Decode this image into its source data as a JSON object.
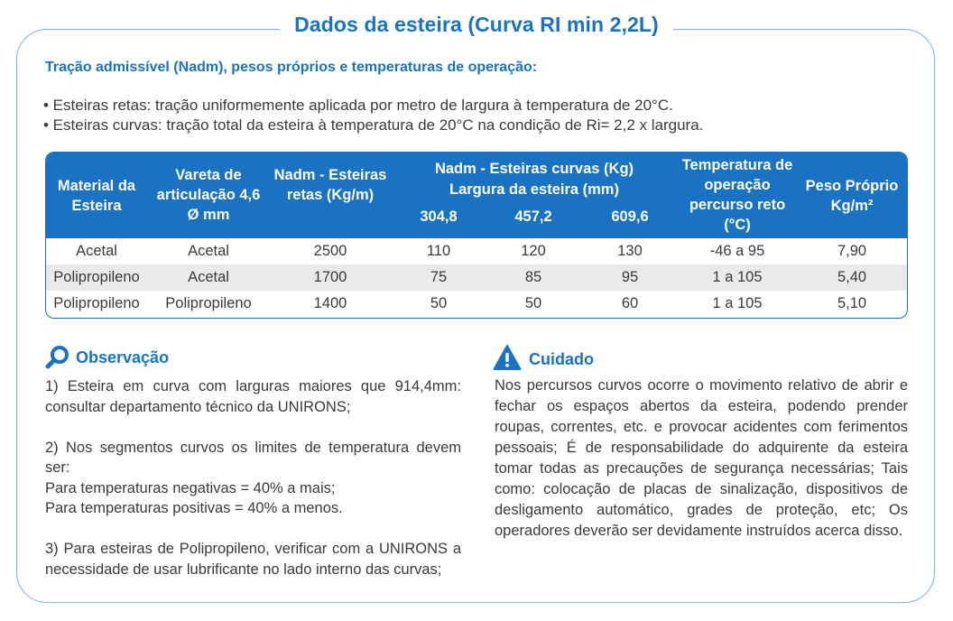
{
  "title": "Dados da esteira (Curva RI min 2,2L)",
  "subtitle": "Tração admissível (Nadm), pesos próprios e temperaturas de operação:",
  "bullets": [
    "• Esteiras retas: tração uniformemente aplicada por metro de largura à temperatura de 20°C.",
    "• Esteiras curvas: tração total da esteira à temperatura de 20°C na condição de Ri= 2,2 x largura."
  ],
  "table": {
    "headers": {
      "material": "Material da Esteira",
      "vareta": "Vareta de articulação 4,6 Ø mm",
      "nadm_retas": "Nadm - Esteiras retas (Kg/m)",
      "nadm_curvas_l1": "Nadm - Esteiras curvas (Kg)",
      "nadm_curvas_l2": "Largura da esteira (mm)",
      "w1": "304,8",
      "w2": "457,2",
      "w3": "609,6",
      "temperatura": "Temperatura de operação percurso reto (°C)",
      "peso": "Peso Próprio Kg/m²"
    },
    "rows": [
      {
        "material": "Acetal",
        "vareta": "Acetal",
        "nadm": "2500",
        "c1": "110",
        "c2": "120",
        "c3": "130",
        "temp": "-46 a 95",
        "peso": "7,90"
      },
      {
        "material": "Polipropileno",
        "vareta": "Acetal",
        "nadm": "1700",
        "c1": "75",
        "c2": "85",
        "c3": "95",
        "temp": "1 a 105",
        "peso": "5,40"
      },
      {
        "material": "Polipropileno",
        "vareta": "Polipropileno",
        "nadm": "1400",
        "c1": "50",
        "c2": "50",
        "c3": "60",
        "temp": "1 a 105",
        "peso": "5,10"
      }
    ]
  },
  "observacao": {
    "heading": "Observação",
    "icon": "magnifier-icon",
    "p1": "1) Esteira em curva com larguras maiores que 914,4mm: consultar departamento técnico da UNIRONS;",
    "p2a": "2) Nos segmentos curvos os limites de temperatura devem ser:",
    "p2b": "Para temperaturas negativas = 40% a mais;",
    "p2c": "Para temperaturas positivas = 40% a menos.",
    "p3": "3) Para esteiras de Polipropileno, verificar com a UNIRONS a necessidade de usar lubrificante no lado interno das curvas;"
  },
  "cuidado": {
    "heading": "Cuidado",
    "icon": "warning-icon",
    "text": "Nos percursos curvos ocorre o movimento relativo de abrir e fechar os espaços abertos da esteira, podendo prender roupas, correntes, etc. e provocar acidentes com ferimentos pessoais; É de responsabilidade do adquirente da esteira tomar todas as precauções de segurança necessárias; Tais como: colocação de placas de sinalização, dispositivos de desligamento automático, grades de proteção, etc; Os operadores deverão ser devidamente instruídos acerca disso."
  },
  "colors": {
    "accent": "#1a73c2",
    "frame": "#7fb0e0",
    "row_alt": "#eaeaea",
    "text": "#3a3a3a"
  }
}
